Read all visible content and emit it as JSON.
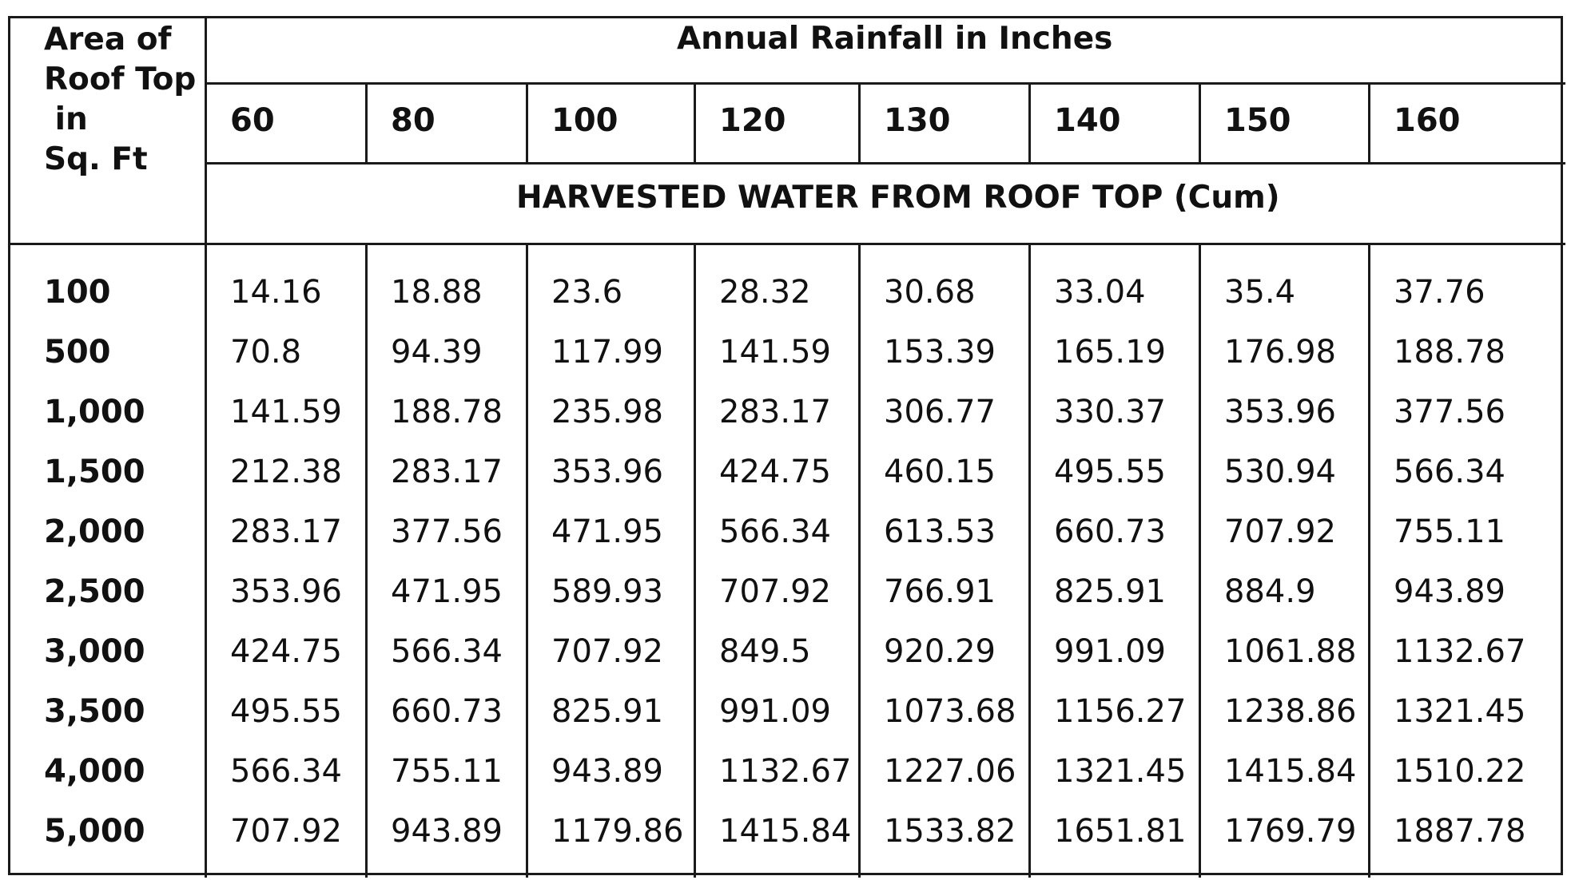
{
  "table": {
    "area_header": "Area of\nRoof Top\n in\nSq. Ft",
    "rainfall_header": "Annual Rainfall in Inches",
    "harvest_header": "HARVESTED WATER FROM ROOF TOP (Cum)",
    "rainfall_columns": [
      "60",
      "80",
      "100",
      "120",
      "130",
      "140",
      "150",
      "160"
    ],
    "rows": [
      {
        "area": "100",
        "values": [
          "14.16",
          "18.88",
          "23.6",
          "28.32",
          "30.68",
          "33.04",
          "35.4",
          "37.76"
        ]
      },
      {
        "area": "500",
        "values": [
          "70.8",
          "94.39",
          "117.99",
          "141.59",
          "153.39",
          "165.19",
          "176.98",
          "188.78"
        ]
      },
      {
        "area": "1,000",
        "values": [
          "141.59",
          "188.78",
          "235.98",
          "283.17",
          "306.77",
          "330.37",
          "353.96",
          "377.56"
        ]
      },
      {
        "area": "1,500",
        "values": [
          "212.38",
          "283.17",
          "353.96",
          "424.75",
          "460.15",
          "495.55",
          "530.94",
          "566.34"
        ]
      },
      {
        "area": "2,000",
        "values": [
          "283.17",
          "377.56",
          "471.95",
          "566.34",
          "613.53",
          "660.73",
          "707.92",
          "755.11"
        ]
      },
      {
        "area": "2,500",
        "values": [
          "353.96",
          "471.95",
          "589.93",
          "707.92",
          "766.91",
          "825.91",
          "884.9",
          "943.89"
        ]
      },
      {
        "area": "3,000",
        "values": [
          "424.75",
          "566.34",
          "707.92",
          "849.5",
          "920.29",
          "991.09",
          "1061.88",
          "1132.67"
        ]
      },
      {
        "area": "3,500",
        "values": [
          "495.55",
          "660.73",
          "825.91",
          "991.09",
          "1073.68",
          "1156.27",
          "1238.86",
          "1321.45"
        ]
      },
      {
        "area": "4,000",
        "values": [
          "566.34",
          "755.11",
          "943.89",
          "1132.67",
          "1227.06",
          "1321.45",
          "1415.84",
          "1510.22"
        ]
      },
      {
        "area": "5,000",
        "values": [
          "707.92",
          "943.89",
          "1179.86",
          "1415.84",
          "1533.82",
          "1651.81",
          "1769.79",
          "1887.78"
        ]
      }
    ]
  }
}
